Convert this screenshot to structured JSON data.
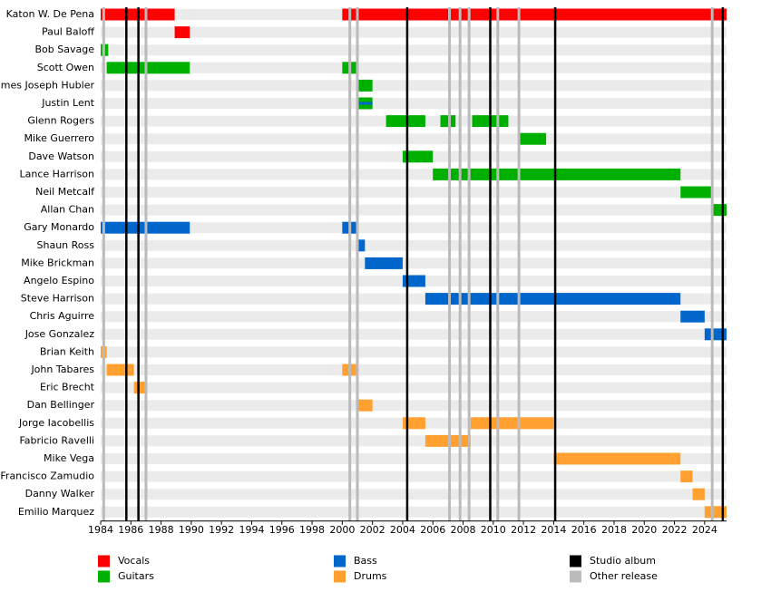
{
  "chart_data": {
    "type": "timeline",
    "categories": [
      "Katon W. De Pena",
      "Paul Baloff",
      "Bob Savage",
      "Scott Owen",
      "James Joseph Hubler",
      "Justin Lent",
      "Glenn Rogers",
      "Mike Guerrero",
      "Dave Watson",
      "Lance Harrison",
      "Neil Metcalf",
      "Allan Chan",
      "Gary Monardo",
      "Shaun Ross",
      "Mike Brickman",
      "Angelo Espino",
      "Steve Harrison",
      "Chris Aguirre",
      "Jose Gonzalez",
      "Brian Keith",
      "John Tabares",
      "Eric Brecht",
      "Dan Bellinger",
      "Jorge Iacobellis",
      "Fabricio Ravelli",
      "Mike Vega",
      "Francisco Zamudio",
      "Danny Walker",
      "Emilio Marquez"
    ],
    "xlim": [
      1984,
      2025.45
    ],
    "xticks": [
      1984,
      1986,
      1988,
      1990,
      1992,
      1994,
      1996,
      1998,
      2000,
      2002,
      2004,
      2006,
      2008,
      2010,
      2012,
      2014,
      2016,
      2018,
      2020,
      2022,
      2024
    ],
    "series": [
      {
        "name": "Vocals",
        "color": "#ff0000",
        "bars": [
          {
            "member": "Katon W. De Pena",
            "start": 1984,
            "end": 1988.9
          },
          {
            "member": "Katon W. De Pena",
            "start": 2000,
            "end": 2025.45
          },
          {
            "member": "Paul Baloff",
            "start": 1988.9,
            "end": 1989.9
          }
        ]
      },
      {
        "name": "Guitars",
        "color": "#00b000",
        "bars": [
          {
            "member": "Bob Savage",
            "start": 1984,
            "end": 1984.5
          },
          {
            "member": "Scott Owen",
            "start": 1984.4,
            "end": 1989.9
          },
          {
            "member": "Scott Owen",
            "start": 2000,
            "end": 2001
          },
          {
            "member": "James Joseph Hubler",
            "start": 2001,
            "end": 2002
          },
          {
            "member": "Justin Lent",
            "start": 2001,
            "end": 2002
          },
          {
            "member": "Glenn Rogers",
            "start": 2002.9,
            "end": 2005.5
          },
          {
            "member": "Glenn Rogers",
            "start": 2006.5,
            "end": 2007.5
          },
          {
            "member": "Glenn Rogers",
            "start": 2008.6,
            "end": 2011
          },
          {
            "member": "Mike Guerrero",
            "start": 2011.7,
            "end": 2013.5
          },
          {
            "member": "Dave Watson",
            "start": 2004,
            "end": 2006
          },
          {
            "member": "Lance Harrison",
            "start": 2006,
            "end": 2022.4
          },
          {
            "member": "Neil Metcalf",
            "start": 2022.4,
            "end": 2024.5
          },
          {
            "member": "Allan Chan",
            "start": 2024.5,
            "end": 2025.45
          }
        ]
      },
      {
        "name": "Bass",
        "color": "#0066cc",
        "bars": [
          {
            "member": "Justin Lent",
            "start": 2001,
            "end": 2002
          },
          {
            "member": "Gary Monardo",
            "start": 1984,
            "end": 1989.9
          },
          {
            "member": "Gary Monardo",
            "start": 2000,
            "end": 2001
          },
          {
            "member": "Shaun Ross",
            "start": 2001,
            "end": 2001.5
          },
          {
            "member": "Mike Brickman",
            "start": 2001.5,
            "end": 2004
          },
          {
            "member": "Angelo Espino",
            "start": 2004,
            "end": 2005.5
          },
          {
            "member": "Steve Harrison",
            "start": 2005.5,
            "end": 2022.4
          },
          {
            "member": "Chris Aguirre",
            "start": 2022.4,
            "end": 2024
          },
          {
            "member": "Jose Gonzalez",
            "start": 2024,
            "end": 2025.45
          }
        ]
      },
      {
        "name": "Drums",
        "color": "#ffa030",
        "bars": [
          {
            "member": "Brian Keith",
            "start": 1984,
            "end": 1984.4
          },
          {
            "member": "John Tabares",
            "start": 1984.4,
            "end": 1986.2
          },
          {
            "member": "John Tabares",
            "start": 2000,
            "end": 2001
          },
          {
            "member": "Eric Brecht",
            "start": 1986.2,
            "end": 1987
          },
          {
            "member": "Dan Bellinger",
            "start": 2001,
            "end": 2002
          },
          {
            "member": "Jorge Iacobellis",
            "start": 2004,
            "end": 2005.5
          },
          {
            "member": "Jorge Iacobellis",
            "start": 2008.5,
            "end": 2014
          },
          {
            "member": "Fabricio Ravelli",
            "start": 2005.5,
            "end": 2008.5
          },
          {
            "member": "Mike Vega",
            "start": 2014,
            "end": 2022.4
          },
          {
            "member": "Francisco Zamudio",
            "start": 2022.4,
            "end": 2023.2
          },
          {
            "member": "Danny Walker",
            "start": 2023.2,
            "end": 2024
          },
          {
            "member": "Emilio Marquez",
            "start": 2024,
            "end": 2025.45
          }
        ]
      }
    ],
    "events": [
      {
        "name": "Studio album",
        "color": "#000000",
        "x": [
          1985.7,
          1986.5,
          2004.3,
          2009.8,
          2014.1,
          2025.2
        ]
      },
      {
        "name": "Other release",
        "color": "#bbbbbb",
        "x": [
          1984.2,
          1987,
          2000.5,
          2001,
          2007.1,
          2007.8,
          2008.4,
          2010.3,
          2011.7,
          2024.5
        ]
      }
    ]
  }
}
